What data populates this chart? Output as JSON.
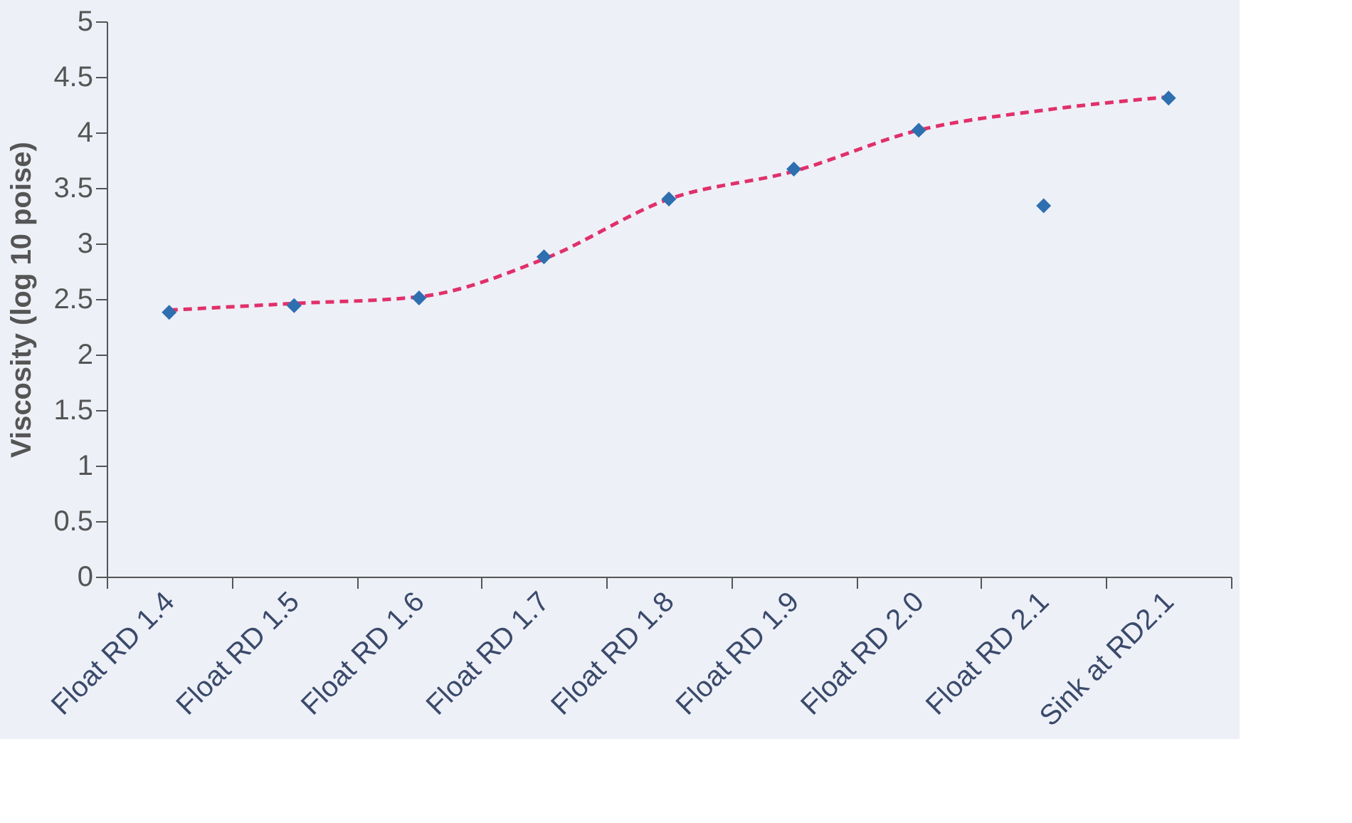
{
  "chart_data": {
    "type": "scatter",
    "ylabel": "Viscosity (log 10 poise)",
    "categories": [
      "Float RD 1.4",
      "Float RD 1.5",
      "Float RD 1.6",
      "Float RD 1.7",
      "Float RD 1.8",
      "Float RD 1.9",
      "Float RD 2.0",
      "Float RD 2.1",
      "Sink at RD2.1"
    ],
    "series": [
      {
        "type": "line",
        "color": "#e0306a",
        "line_style": "dashed",
        "marker": "none",
        "values": [
          2.4,
          2.46,
          2.52,
          2.86,
          3.4,
          3.65,
          4.02,
          4.2,
          4.32
        ]
      },
      {
        "color": "#2e6fb0",
        "marker": "diamond",
        "values": [
          2.38,
          2.44,
          2.51,
          2.88,
          3.4,
          3.67,
          4.02,
          3.34,
          4.31
        ]
      }
    ],
    "ylim": [
      0,
      5
    ],
    "yticks": [
      0,
      0.5,
      1,
      1.5,
      2,
      2.5,
      3,
      3.5,
      4,
      4.5,
      5
    ],
    "grid": false
  }
}
